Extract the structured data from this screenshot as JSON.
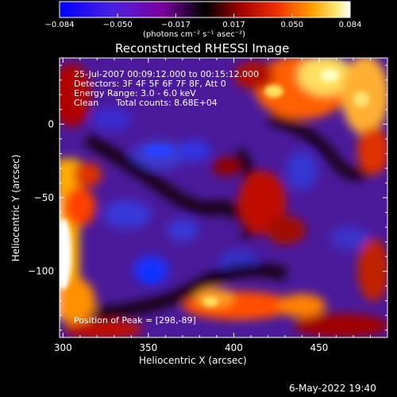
{
  "chart_data": {
    "type": "heatmap",
    "title": "Reconstructed RHESSI Image",
    "xlabel": "Heliocentric X (arcsec)",
    "ylabel": "Heliocentric Y (arcsec)",
    "xlim": [
      298,
      490
    ],
    "ylim": [
      -145,
      45
    ],
    "xticks": [
      300,
      350,
      400,
      450
    ],
    "yticks": [
      0,
      -50,
      -100
    ],
    "colorbar": {
      "range": [
        -0.084,
        0.084
      ],
      "ticks": [
        "−0.084",
        "−0.050",
        "−0.017",
        "0.017",
        "0.050",
        "0.084"
      ],
      "units": "(photons cm⁻² s⁻¹ asec⁻²)",
      "colormap": [
        "#0000ff",
        "#6020d0",
        "#7a0090",
        "#000000",
        "#8a0000",
        "#e02000",
        "#ff8000",
        "#ffe060",
        "#ffffff"
      ]
    },
    "annotations": {
      "time": "25-Jul-2007 00:09:12.000 to 00:15:12.000",
      "detectors": "Detectors: 3F 4F 5F 6F 7F 8F, Att 0",
      "energy": "Energy Range: 3.0 - 6.0 keV",
      "method": "Clean",
      "counts": "Total counts: 8.68E+04",
      "peak": "Position of Peak = [298,-89]"
    },
    "peak": [
      298,
      -89
    ]
  },
  "footer": {
    "date": "6-May-2022 19:40"
  }
}
